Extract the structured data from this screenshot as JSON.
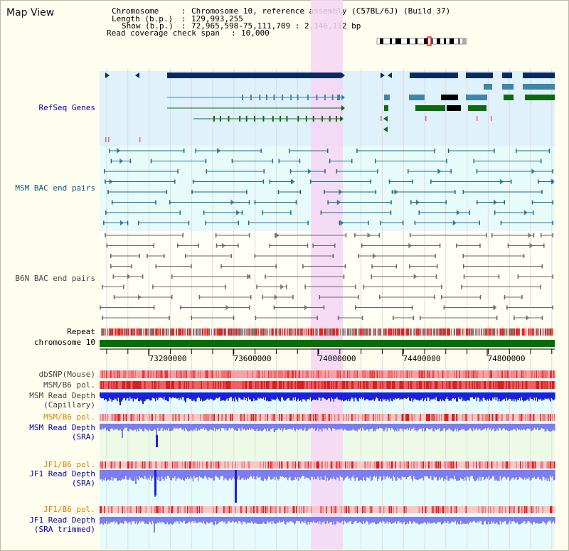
{
  "window": {
    "title": "Map View"
  },
  "header": {
    "chromosome_key": "Chromosome",
    "chromosome_val": "Chromosome 10, reference assembly (C57BL/6J) (Build 37)",
    "length_key": "Length (b.p.)",
    "length_val": "129,993,255",
    "show_key": "Show (b.p.)",
    "show_val": "72,965,598-75,111,709 : 2,146,112 bp",
    "span_key": "Read coverage check span",
    "span_val": "10,000"
  },
  "tracks": {
    "refseq": "RefSeq Genes",
    "msm_bac": "MSM BAC end pairs",
    "b6n_bac": "B6N BAC end pairs",
    "repeat": "Repeat",
    "chrom_bar": "chromosome 10",
    "dbsnp": "dbSNP(Mouse)",
    "msm_b6_pol_1": "MSM/B6 pol.",
    "msm_depth_cap_1": "MSM Read Depth",
    "msm_depth_cap_2": "(Capillary)",
    "msm_b6_pol_2": "MSM/B6 pol.",
    "msm_depth_sra_1": "MSM Read Depth",
    "msm_depth_sra_2": "(SRA)",
    "jf1_b6_pol_1": "JF1/B6 pol.",
    "jf1_depth_sra_1": "JF1 Read Depth",
    "jf1_depth_sra_2": "(SRA)",
    "jf1_b6_pol_2": "JF1/B6 pol.",
    "jf1_depth_trim_1": "JF1 Read Depth",
    "jf1_depth_trim_2": "(SRA trimmed)"
  },
  "axis": {
    "ticks": [
      "73200000",
      "73600000",
      "74000000",
      "74400000",
      "74800000"
    ]
  },
  "colors": {
    "refseq_bg": "#dff1fb",
    "bac_bg": "#e8fbfb",
    "highlight": "#f7d6f4",
    "gene_dark": "#0a2a5c",
    "gene_mid": "#3d86a8",
    "gene_green": "#0e6a0e",
    "msm_bac": "#136c8c",
    "b6n_bac": "#666666",
    "chrom_green": "#007000",
    "depth_blue": "#1a22d8",
    "depth_light": "#7d7df0"
  }
}
